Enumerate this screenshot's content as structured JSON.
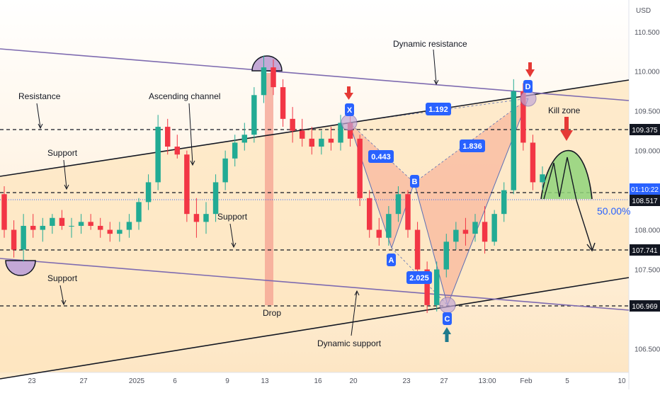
{
  "currency": "USD",
  "chart_data": {
    "type": "candlestick",
    "y_ticks": [
      "110.500",
      "110.000",
      "109.500",
      "109.000",
      "108.000",
      "107.500",
      "106.500"
    ],
    "ylim": [
      106.2,
      110.9
    ],
    "x_ticks": [
      "23",
      "27",
      "2025",
      "6",
      "9",
      "13",
      "16",
      "20",
      "23",
      "27",
      "13:00",
      "Feb",
      "5",
      "10"
    ],
    "price_tags": [
      {
        "value": "109.375",
        "color": "#131722"
      },
      {
        "value": "01:10:22",
        "color": "#2962ff"
      },
      {
        "value": "108.517",
        "color": "#131722"
      },
      {
        "value": "107.741",
        "color": "#131722"
      },
      {
        "value": "106.969",
        "color": "#131722"
      }
    ],
    "annotations": [
      "Dynamic resistance",
      "Resistance",
      "Ascending channel",
      "Support",
      "Support",
      "Support",
      "Drop",
      "Dynamic support",
      "Kill zone"
    ],
    "harmonic_points": [
      "X",
      "A",
      "B",
      "C",
      "D"
    ],
    "harmonic_ratios": [
      "0.443",
      "1.836",
      "2.025",
      "1.192"
    ],
    "percent_label": "50.00%",
    "candles": [
      {
        "o": 108.45,
        "h": 108.55,
        "l": 107.9,
        "c": 108.0
      },
      {
        "o": 108.0,
        "h": 108.12,
        "l": 107.65,
        "c": 107.75
      },
      {
        "o": 107.75,
        "h": 108.2,
        "l": 107.6,
        "c": 108.05
      },
      {
        "o": 108.05,
        "h": 108.2,
        "l": 107.9,
        "c": 108.0
      },
      {
        "o": 108.0,
        "h": 108.15,
        "l": 107.85,
        "c": 108.05
      },
      {
        "o": 108.05,
        "h": 108.2,
        "l": 107.95,
        "c": 108.15
      },
      {
        "o": 108.15,
        "h": 108.25,
        "l": 108.0,
        "c": 108.05
      },
      {
        "o": 108.05,
        "h": 108.15,
        "l": 107.9,
        "c": 108.05
      },
      {
        "o": 108.05,
        "h": 108.2,
        "l": 107.95,
        "c": 108.1
      },
      {
        "o": 108.1,
        "h": 108.2,
        "l": 108.0,
        "c": 108.05
      },
      {
        "o": 108.05,
        "h": 108.15,
        "l": 107.9,
        "c": 108.0
      },
      {
        "o": 108.0,
        "h": 108.1,
        "l": 107.85,
        "c": 107.95
      },
      {
        "o": 107.95,
        "h": 108.1,
        "l": 107.85,
        "c": 108.0
      },
      {
        "o": 108.0,
        "h": 108.2,
        "l": 107.9,
        "c": 108.1
      },
      {
        "o": 108.1,
        "h": 108.4,
        "l": 108.0,
        "c": 108.35
      },
      {
        "o": 108.35,
        "h": 108.7,
        "l": 108.25,
        "c": 108.6
      },
      {
        "o": 108.6,
        "h": 109.45,
        "l": 108.5,
        "c": 109.3
      },
      {
        "o": 109.3,
        "h": 109.4,
        "l": 108.95,
        "c": 109.05
      },
      {
        "o": 109.05,
        "h": 109.2,
        "l": 108.9,
        "c": 108.95
      },
      {
        "o": 108.95,
        "h": 109.0,
        "l": 108.1,
        "c": 108.2
      },
      {
        "o": 108.2,
        "h": 108.4,
        "l": 107.9,
        "c": 108.1
      },
      {
        "o": 108.1,
        "h": 108.35,
        "l": 107.95,
        "c": 108.2
      },
      {
        "o": 108.2,
        "h": 108.7,
        "l": 108.1,
        "c": 108.6
      },
      {
        "o": 108.6,
        "h": 109.0,
        "l": 108.5,
        "c": 108.9
      },
      {
        "o": 108.9,
        "h": 109.2,
        "l": 108.8,
        "c": 109.1
      },
      {
        "o": 109.1,
        "h": 109.35,
        "l": 109.0,
        "c": 109.2
      },
      {
        "o": 109.2,
        "h": 109.8,
        "l": 109.1,
        "c": 109.7
      },
      {
        "o": 109.7,
        "h": 110.2,
        "l": 109.6,
        "c": 110.05
      },
      {
        "o": 110.05,
        "h": 110.15,
        "l": 109.7,
        "c": 109.8
      },
      {
        "o": 109.8,
        "h": 109.9,
        "l": 109.3,
        "c": 109.4
      },
      {
        "o": 109.4,
        "h": 109.55,
        "l": 109.1,
        "c": 109.25
      },
      {
        "o": 109.25,
        "h": 109.4,
        "l": 109.05,
        "c": 109.15
      },
      {
        "o": 109.15,
        "h": 109.3,
        "l": 108.95,
        "c": 109.05
      },
      {
        "o": 109.05,
        "h": 109.25,
        "l": 108.95,
        "c": 109.15
      },
      {
        "o": 109.15,
        "h": 109.3,
        "l": 109.0,
        "c": 109.1
      },
      {
        "o": 109.1,
        "h": 109.45,
        "l": 109.0,
        "c": 109.35
      },
      {
        "o": 109.35,
        "h": 109.5,
        "l": 109.05,
        "c": 109.15
      },
      {
        "o": 109.15,
        "h": 109.2,
        "l": 108.3,
        "c": 108.4
      },
      {
        "o": 108.4,
        "h": 108.5,
        "l": 107.9,
        "c": 108.0
      },
      {
        "o": 108.0,
        "h": 108.15,
        "l": 107.8,
        "c": 107.9
      },
      {
        "o": 107.9,
        "h": 108.3,
        "l": 107.8,
        "c": 108.2
      },
      {
        "o": 108.2,
        "h": 108.55,
        "l": 108.1,
        "c": 108.45
      },
      {
        "o": 108.45,
        "h": 108.5,
        "l": 107.9,
        "c": 108.0
      },
      {
        "o": 108.0,
        "h": 108.1,
        "l": 107.4,
        "c": 107.5
      },
      {
        "o": 107.5,
        "h": 107.6,
        "l": 106.95,
        "c": 107.05
      },
      {
        "o": 107.05,
        "h": 107.6,
        "l": 106.97,
        "c": 107.5
      },
      {
        "o": 107.5,
        "h": 107.95,
        "l": 107.4,
        "c": 107.85
      },
      {
        "o": 107.85,
        "h": 108.1,
        "l": 107.75,
        "c": 108.0
      },
      {
        "o": 108.0,
        "h": 108.15,
        "l": 107.8,
        "c": 107.95
      },
      {
        "o": 107.95,
        "h": 108.2,
        "l": 107.85,
        "c": 108.1
      },
      {
        "o": 108.1,
        "h": 108.3,
        "l": 107.7,
        "c": 107.85
      },
      {
        "o": 107.85,
        "h": 108.25,
        "l": 107.8,
        "c": 108.2
      },
      {
        "o": 108.2,
        "h": 108.6,
        "l": 108.1,
        "c": 108.5
      },
      {
        "o": 108.5,
        "h": 109.9,
        "l": 108.45,
        "c": 109.75
      },
      {
        "o": 109.75,
        "h": 109.85,
        "l": 109.0,
        "c": 109.1
      },
      {
        "o": 109.1,
        "h": 109.2,
        "l": 108.5,
        "c": 108.6
      },
      {
        "o": 108.6,
        "h": 108.8,
        "l": 108.5,
        "c": 108.7
      }
    ]
  }
}
